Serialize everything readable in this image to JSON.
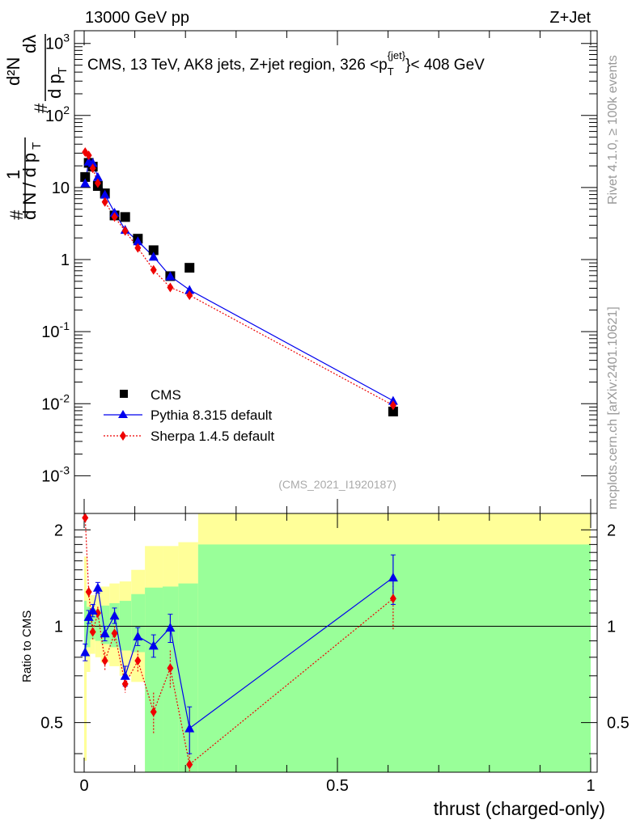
{
  "header": {
    "left": "13000 GeV pp",
    "right": "Z+Jet"
  },
  "side": {
    "rivet": "Rivet 4.1.0, ≥ 100k events",
    "mcplots": "mcplots.cern.ch [arXiv:2401.10621]"
  },
  "labels": {
    "analysis_id": "(CMS_2021_I1920187)",
    "ylabel_main_tail": "dλ",
    "ylabel_ratio": "Ratio to CMS",
    "xlabel": "thrust (charged-only)"
  },
  "colors": {
    "cms": "#000000",
    "pythia": "#0000ee",
    "sherpa": "#ee0000",
    "band_inner": "#99ff99",
    "band_outer": "#ffff99"
  },
  "chart_data": [
    {
      "id": "main",
      "type": "scatter",
      "title": "CMS, 13 TeV, AK8 jets, Z+jet region, 326 <p_T^{jet}> < 408 GeV",
      "title_parts": {
        "pre": "CMS, 13 TeV, AK8 jets, Z+jet region, 326 <p",
        "sub": "T",
        "sup": "{jet}",
        "post": "}< 408 GeV"
      },
      "xlim": [
        0,
        1
      ],
      "ylim": [
        0.0003,
        1500
      ],
      "yscale": "log",
      "y_ticks": [
        {
          "base": "10",
          "exp": "-3",
          "v": 0.001
        },
        {
          "base": "10",
          "exp": "-2",
          "v": 0.01
        },
        {
          "base": "10",
          "exp": "-1",
          "v": 0.1
        },
        {
          "base": "1",
          "exp": "",
          "v": 1
        },
        {
          "base": "10",
          "exp": "",
          "v": 10
        },
        {
          "base": "10",
          "exp": "2",
          "v": 100
        },
        {
          "base": "10",
          "exp": "3",
          "v": 1000
        }
      ],
      "legend": {
        "position": "bottom-left",
        "entries": [
          "CMS",
          "Pythia 8.315 default",
          "Sherpa 1.4.5 default"
        ]
      },
      "series": [
        {
          "name": "CMS",
          "x": [
            0.002,
            0.009,
            0.017,
            0.027,
            0.041,
            0.06,
            0.081,
            0.106,
            0.137,
            0.17,
            0.208,
            0.61
          ],
          "y": [
            14,
            22,
            19.5,
            10.5,
            8.3,
            4.1,
            3.9,
            1.95,
            1.35,
            0.59,
            0.77,
            0.0078
          ]
        },
        {
          "name": "Pythia 8.315 default",
          "x": [
            0.002,
            0.009,
            0.017,
            0.027,
            0.041,
            0.06,
            0.081,
            0.106,
            0.137,
            0.17,
            0.208,
            0.61
          ],
          "y": [
            11.5,
            23,
            22,
            14,
            8,
            4.5,
            2.6,
            1.8,
            1.1,
            0.59,
            0.38,
            0.011
          ]
        },
        {
          "name": "Sherpa 1.4.5 default",
          "x": [
            0.002,
            0.009,
            0.017,
            0.027,
            0.041,
            0.06,
            0.081,
            0.106,
            0.137,
            0.17,
            0.208,
            0.61
          ],
          "y": [
            31,
            28,
            18.5,
            11.5,
            6.3,
            3.9,
            2.5,
            1.45,
            0.72,
            0.41,
            0.32,
            0.0095
          ]
        }
      ]
    },
    {
      "id": "ratio",
      "type": "line",
      "ylabel": "Ratio to CMS",
      "xlabel": "thrust (charged-only)",
      "xlim": [
        0,
        1
      ],
      "ylim": [
        0.35,
        2.25
      ],
      "yscale": "log",
      "y_ticks": [
        "0.5",
        "1",
        "2"
      ],
      "x_ticks": [
        "0",
        "0.5",
        "1"
      ],
      "bin_edges": [
        0,
        0.005,
        0.012,
        0.022,
        0.033,
        0.05,
        0.07,
        0.093,
        0.12,
        0.155,
        0.186,
        0.225,
        1.0
      ],
      "band_inner_lo": [
        0.8,
        0.86,
        0.91,
        0.9,
        0.88,
        0.86,
        0.84,
        0.83,
        0.35,
        0.35,
        0.35,
        0.35
      ],
      "band_inner_hi": [
        1.2,
        1.15,
        1.12,
        1.13,
        1.16,
        1.18,
        1.2,
        1.26,
        1.32,
        1.33,
        1.36,
        1.8
      ],
      "band_outer_lo": [
        0.38,
        0.72,
        0.82,
        0.8,
        0.77,
        0.75,
        0.7,
        0.67,
        0.35,
        0.35,
        0.35,
        0.35
      ],
      "band_outer_hi": [
        1.65,
        1.3,
        1.25,
        1.28,
        1.33,
        1.36,
        1.38,
        1.5,
        1.78,
        1.78,
        1.83,
        2.3
      ],
      "series": [
        {
          "name": "Pythia 8.315 default",
          "x": [
            0.002,
            0.009,
            0.017,
            0.027,
            0.041,
            0.06,
            0.081,
            0.106,
            0.137,
            0.17,
            0.208,
            0.61
          ],
          "y": [
            0.83,
            1.07,
            1.12,
            1.32,
            0.95,
            1.08,
            0.7,
            0.93,
            0.87,
            0.99,
            0.48,
            1.42
          ],
          "err": [
            0.05,
            0.05,
            0.05,
            0.05,
            0.05,
            0.06,
            0.05,
            0.06,
            0.07,
            0.1,
            0.08,
            0.25
          ]
        },
        {
          "name": "Sherpa 1.4.5 default",
          "x": [
            0.002,
            0.009,
            0.017,
            0.027,
            0.041,
            0.06,
            0.081,
            0.106,
            0.137,
            0.17,
            0.208,
            0.61
          ],
          "y": [
            2.18,
            1.28,
            0.96,
            1.1,
            0.78,
            0.95,
            0.66,
            0.78,
            0.54,
            0.74,
            0.37,
            1.22
          ],
          "err": [
            0.0,
            0.05,
            0.05,
            0.05,
            0.05,
            0.05,
            0.04,
            0.06,
            0.08,
            0.1,
            0.04,
            0.25
          ]
        }
      ]
    }
  ]
}
